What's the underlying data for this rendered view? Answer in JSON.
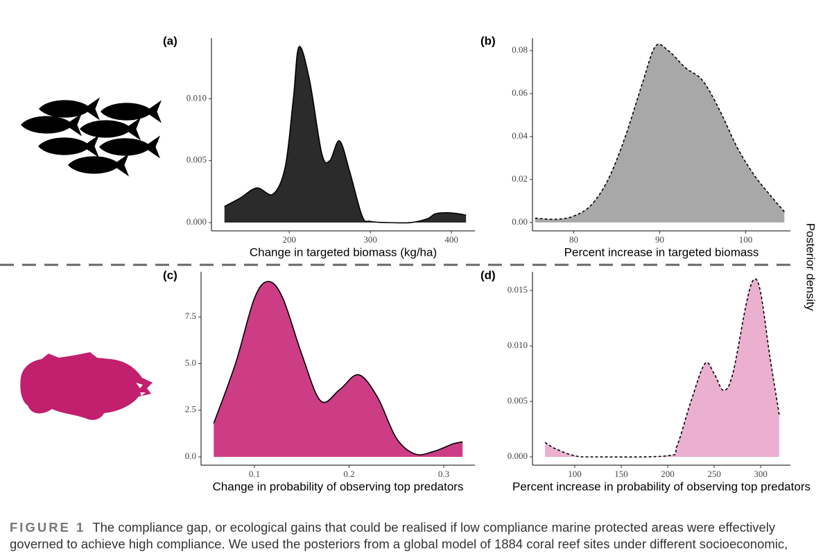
{
  "figure": {
    "y_label": "Posterior density",
    "caption_label": "FIGURE 1",
    "caption_lines": [
      "The compliance gap, or ecological gains that could be realised if low compliance marine protected areas were effectively",
      "governed to achieve high compliance. We used the posteriors from a global model of 1884 coral reef sites under different socioeconomic,"
    ]
  },
  "chart_data": [
    {
      "type": "area",
      "panel": "(a)",
      "xlabel": "Change in targeted biomass (kg/ha)",
      "color": "#2b2b2b",
      "line_style": "solid",
      "x": [
        120,
        140,
        160,
        180,
        195,
        205,
        212,
        225,
        240,
        250,
        262,
        275,
        290,
        300,
        320,
        350,
        370,
        380,
        395,
        410,
        418
      ],
      "values": [
        0.0013,
        0.002,
        0.0028,
        0.0023,
        0.0045,
        0.01,
        0.0142,
        0.0115,
        0.0056,
        0.005,
        0.0066,
        0.004,
        0.0005,
        0.0001,
        0,
        0,
        0.0003,
        0.0007,
        0.0008,
        0.0007,
        0.0006
      ],
      "xlim": [
        104,
        429
      ],
      "ylim": [
        -0.00067,
        0.0149
      ],
      "xticks": [
        200,
        300,
        400
      ],
      "yticks": [
        {
          "value": 0,
          "label": "0.000"
        },
        0.005,
        {
          "value": 0.01,
          "label": "0.010"
        }
      ]
    },
    {
      "type": "area",
      "panel": "(b)",
      "xlabel": "Percent increase in targeted biomass",
      "color": "#a8a8a8",
      "line_style": "dashed",
      "x": [
        75.5,
        78,
        80,
        82,
        84,
        86,
        88,
        89.5,
        91,
        93,
        95,
        97,
        99,
        101,
        103,
        104.5
      ],
      "values": [
        0.002,
        0.0015,
        0.003,
        0.008,
        0.02,
        0.04,
        0.065,
        0.082,
        0.08,
        0.072,
        0.066,
        0.052,
        0.035,
        0.022,
        0.012,
        0.005
      ],
      "xlim": [
        75.2,
        105.2
      ],
      "ylim": [
        -0.0039,
        0.0858
      ],
      "xticks": [
        80,
        90,
        100
      ],
      "yticks": [
        {
          "value": 0,
          "label": "0.00"
        },
        0.02,
        0.04,
        0.06,
        0.08
      ]
    },
    {
      "type": "area",
      "panel": "(c)",
      "xlabel": "Change in probability of observing top predators",
      "color": "#cc3d85",
      "line_style": "solid",
      "x": [
        0.057,
        0.08,
        0.1,
        0.115,
        0.13,
        0.15,
        0.17,
        0.19,
        0.21,
        0.23,
        0.25,
        0.27,
        0.29,
        0.31,
        0.32
      ],
      "values": [
        1.8,
        5.0,
        8.5,
        9.4,
        8.5,
        5.5,
        3.0,
        3.6,
        4.4,
        3.2,
        1.0,
        0.15,
        0.3,
        0.7,
        0.8
      ],
      "xlim": [
        0.0436,
        0.333
      ],
      "ylim": [
        -0.446,
        9.92
      ],
      "xticks": [
        0.1,
        0.2,
        0.3
      ],
      "yticks": [
        {
          "value": 0,
          "label": "0.0"
        },
        2.5,
        {
          "value": 5,
          "label": "5.0"
        },
        7.5
      ]
    },
    {
      "type": "area",
      "panel": "(d)",
      "xlabel": "Percent increase in probability of observing top predators",
      "color": "#ebb0cf",
      "line_style": "dashed",
      "x": [
        68,
        80,
        100,
        120,
        200,
        210,
        225,
        240,
        250,
        260,
        270,
        285,
        293,
        300,
        310,
        320
      ],
      "values": [
        0.0013,
        0.0007,
        0.0001,
        0,
        0.0001,
        0.001,
        0.005,
        0.0084,
        0.0075,
        0.006,
        0.0075,
        0.014,
        0.016,
        0.0148,
        0.009,
        0.0038
      ],
      "xlim": [
        54.5,
        332
      ],
      "ylim": [
        -0.00075,
        0.01669
      ],
      "xticks": [
        100,
        150,
        200,
        250,
        300
      ],
      "yticks": [
        {
          "value": 0,
          "label": "0.000"
        },
        0.005,
        {
          "value": 0.01,
          "label": "0.010"
        },
        0.015
      ]
    }
  ]
}
